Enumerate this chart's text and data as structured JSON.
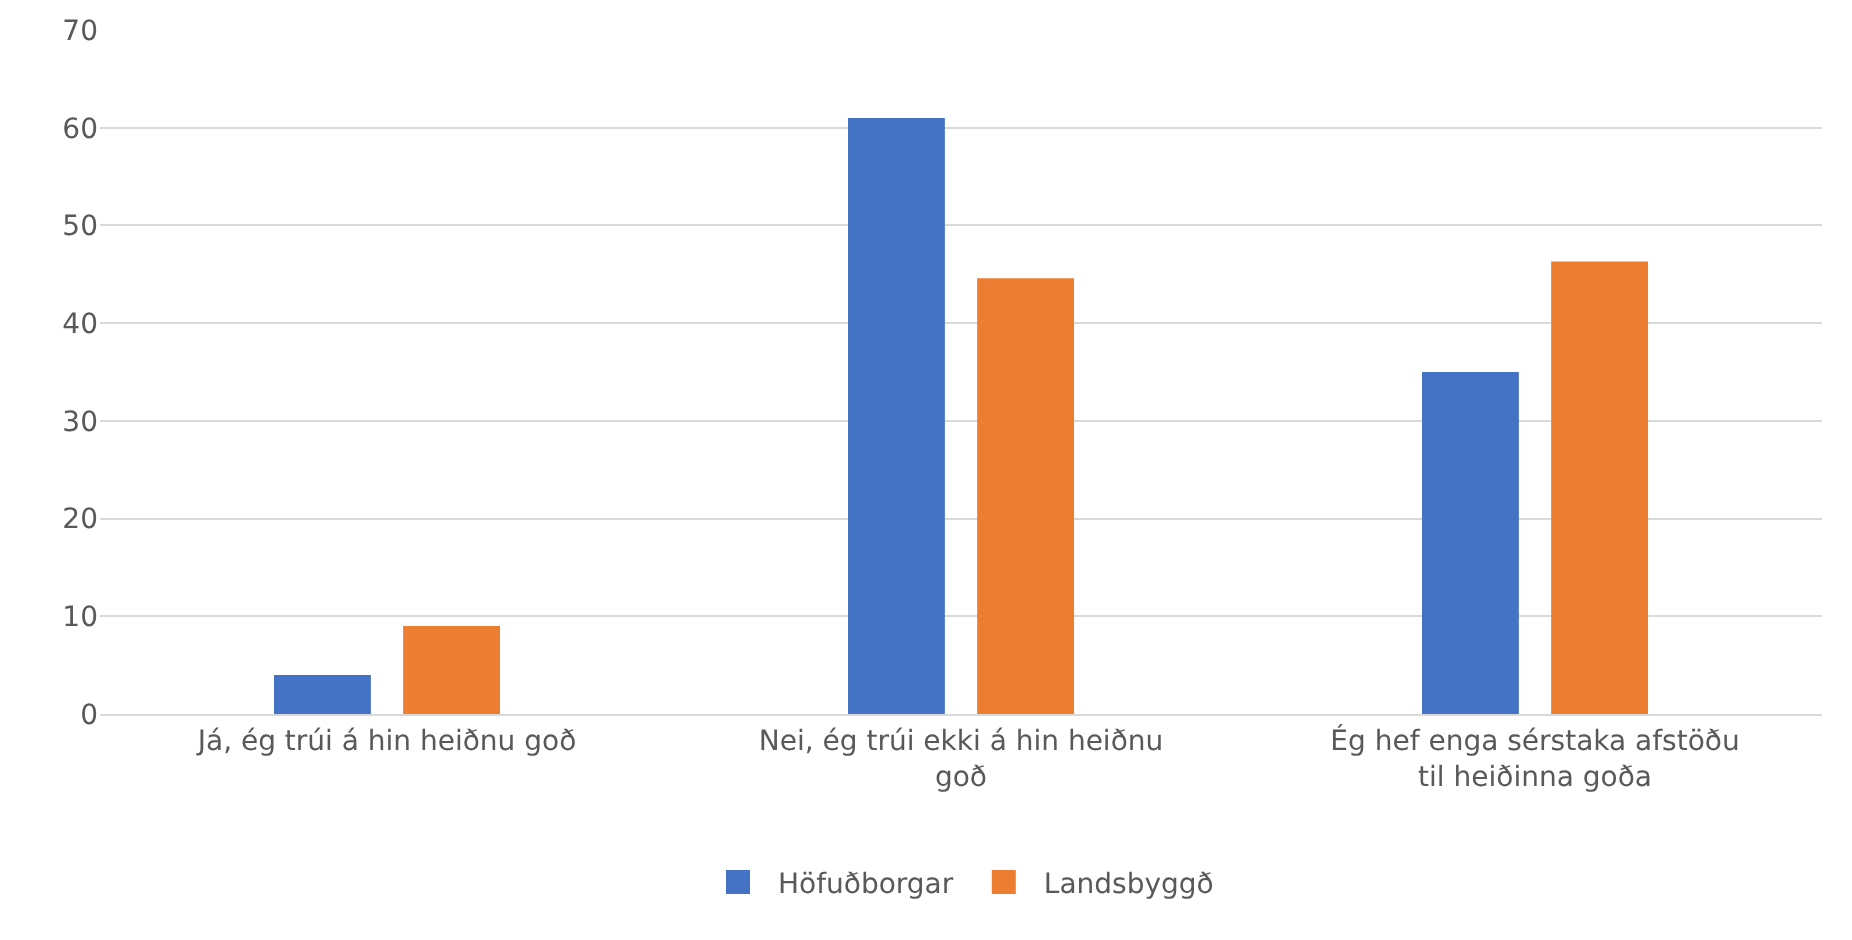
{
  "chart_data": {
    "type": "bar",
    "categories": [
      "Já, ég trúi á hin heiðnu goð",
      "Nei, ég trúi ekki á hin heiðnu goð",
      "Ég hef enga sérstaka afstöðu til heiðinna goða"
    ],
    "series": [
      {
        "name": "Höfuðborgar",
        "color": "#4472c4",
        "values": [
          4,
          61,
          35
        ]
      },
      {
        "name": "Landsbyggð",
        "color": "#ed7d31",
        "values": [
          9,
          44.6,
          46.3
        ]
      }
    ],
    "ylim": [
      0,
      70
    ],
    "yticks": [
      0,
      10,
      20,
      30,
      40,
      50,
      60,
      70
    ],
    "grid": "y",
    "legend": "bottom"
  }
}
